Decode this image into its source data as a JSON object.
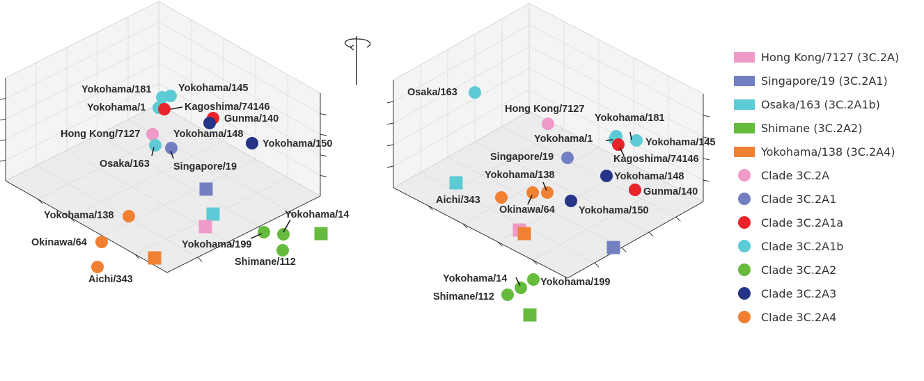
{
  "chart_data": [
    {
      "type": "scatter",
      "view": "left",
      "points": [
        {
          "label": "Yokohama/181",
          "clade": "Clade 3C.2A1b",
          "marker": "circle"
        },
        {
          "label": "Yokohama/145",
          "clade": "Clade 3C.2A1b",
          "marker": "circle"
        },
        {
          "label": "Yokohama/1",
          "clade": "Clade 3C.2A1b",
          "marker": "circle"
        },
        {
          "label": "Kagoshima/74146",
          "clade": "Clade 3C.2A1a",
          "marker": "circle"
        },
        {
          "label": "Gunma/140",
          "clade": "Clade 3C.2A1a",
          "marker": "circle"
        },
        {
          "label": "Yokohama/148",
          "clade": "Clade 3C.2A3",
          "marker": "circle"
        },
        {
          "label": "Yokohama/150",
          "clade": "Clade 3C.2A3",
          "marker": "circle"
        },
        {
          "label": "Hong Kong/7127",
          "clade": "Clade 3C.2A",
          "marker": "circle"
        },
        {
          "label": "Osaka/163",
          "clade": "Clade 3C.2A1b",
          "marker": "circle"
        },
        {
          "label": "Singapore/19",
          "clade": "Clade 3C.2A1",
          "marker": "circle"
        },
        {
          "label": "Yokohama/138",
          "clade": "Clade 3C.2A4",
          "marker": "circle"
        },
        {
          "label": "Okinawa/64",
          "clade": "Clade 3C.2A4",
          "marker": "circle"
        },
        {
          "label": "Aichi/343",
          "clade": "Clade 3C.2A4",
          "marker": "circle"
        },
        {
          "label": "Yokohama/199",
          "clade": "Clade 3C.2A2",
          "marker": "circle"
        },
        {
          "label": "Yokohama/14",
          "clade": "Clade 3C.2A2",
          "marker": "circle"
        },
        {
          "label": "Shimane/112",
          "clade": "Clade 3C.2A2",
          "marker": "circle"
        },
        {
          "label": "Singapore/19 (3C.2A1)",
          "marker": "square"
        },
        {
          "label": "Osaka/163 (3C.2A1b)",
          "marker": "square"
        },
        {
          "label": "Hong Kong/7127 (3C.2A)",
          "marker": "square"
        },
        {
          "label": "Shimane (3C.2A2)",
          "marker": "square"
        },
        {
          "label": "Yokohama/138 (3C.2A4)",
          "marker": "square"
        }
      ]
    },
    {
      "type": "scatter",
      "view": "right (rotated)",
      "points": [
        {
          "label": "Osaka/163",
          "clade": "Clade 3C.2A1b",
          "marker": "circle"
        },
        {
          "label": "Hong Kong/7127",
          "clade": "Clade 3C.2A",
          "marker": "circle"
        },
        {
          "label": "Yokohama/181",
          "clade": "Clade 3C.2A1b",
          "marker": "circle"
        },
        {
          "label": "Yokohama/1",
          "clade": "Clade 3C.2A1b",
          "marker": "circle"
        },
        {
          "label": "Yokohama/145",
          "clade": "Clade 3C.2A1b",
          "marker": "circle"
        },
        {
          "label": "Kagoshima/74146",
          "clade": "Clade 3C.2A1a",
          "marker": "circle"
        },
        {
          "label": "Singapore/19",
          "clade": "Clade 3C.2A1",
          "marker": "circle"
        },
        {
          "label": "Yokohama/148",
          "clade": "Clade 3C.2A3",
          "marker": "circle"
        },
        {
          "label": "Gunma/140",
          "clade": "Clade 3C.2A1a",
          "marker": "circle"
        },
        {
          "label": "Yokohama/138",
          "clade": "Clade 3C.2A4",
          "marker": "circle"
        },
        {
          "label": "Aichi/343",
          "clade": "Clade 3C.2A4",
          "marker": "circle"
        },
        {
          "label": "Okinawa/64",
          "clade": "Clade 3C.2A4",
          "marker": "circle"
        },
        {
          "label": "Yokohama/150",
          "clade": "Clade 3C.2A3",
          "marker": "circle"
        },
        {
          "label": "Yokohama/14",
          "clade": "Clade 3C.2A2",
          "marker": "circle"
        },
        {
          "label": "Yokohama/199",
          "clade": "Clade 3C.2A2",
          "marker": "circle"
        },
        {
          "label": "Shimane/112",
          "clade": "Clade 3C.2A2",
          "marker": "circle"
        },
        {
          "label": "Osaka/163 (3C.2A1b)",
          "marker": "square"
        },
        {
          "label": "Hong Kong/7127 (3C.2A)",
          "marker": "square"
        },
        {
          "label": "Yokohama/138 (3C.2A4)",
          "marker": "square"
        },
        {
          "label": "Singapore/19 (3C.2A1)",
          "marker": "square"
        },
        {
          "label": "Shimane (3C.2A2)",
          "marker": "square"
        }
      ]
    }
  ],
  "legend": {
    "squares": [
      {
        "label": "Hong Kong/7127 (3C.2A)",
        "color": "#ef9ac8"
      },
      {
        "label": "Singapore/19 (3C.2A1)",
        "color": "#7280c2"
      },
      {
        "label": "Osaka/163 (3C.2A1b)",
        "color": "#5ccbd5"
      },
      {
        "label": "Shimane (3C.2A2)",
        "color": "#66bb3e"
      },
      {
        "label": "Yokohama/138 (3C.2A4)",
        "color": "#f08133"
      }
    ],
    "circles": [
      {
        "label": "Clade 3C.2A",
        "color": "#ef9ac8"
      },
      {
        "label": "Clade 3C.2A1",
        "color": "#7280c2"
      },
      {
        "label": "Clade 3C.2A1a",
        "color": "#e8232a"
      },
      {
        "label": "Clade 3C.2A1b",
        "color": "#5ccbd5"
      },
      {
        "label": "Clade 3C.2A2",
        "color": "#66bb3e"
      },
      {
        "label": "Clade 3C.2A3",
        "color": "#263487"
      },
      {
        "label": "Clade 3C.2A4",
        "color": "#f08133"
      }
    ]
  },
  "rotation_icon": "rotate-arrow-icon"
}
